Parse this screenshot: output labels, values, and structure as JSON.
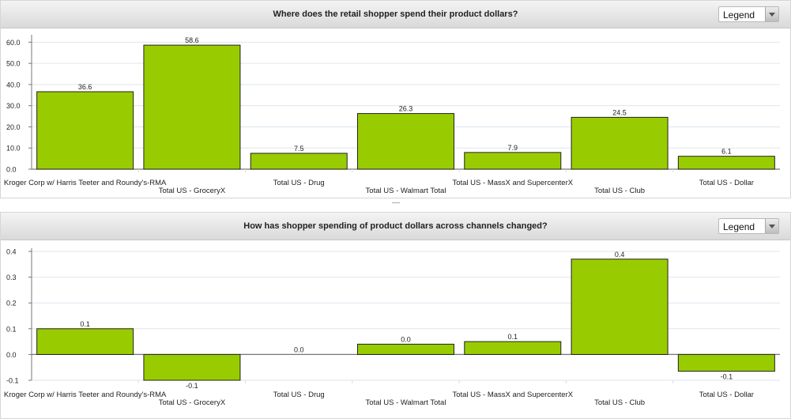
{
  "colors": {
    "bar": "#99cc00",
    "bar_stroke": "#222222",
    "grid": "#dde6ee",
    "axis": "#777777"
  },
  "chart1": {
    "legend_label": "Legend"
  },
  "chart2": {
    "legend_label": "Legend"
  },
  "chart_data": [
    {
      "type": "bar",
      "title": "Where does the retail shopper spend their product dollars?",
      "categories": [
        "Kroger Corp w/ Harris Teeter and Roundy's-RMA",
        "Total US - GroceryX",
        "Total US - Drug",
        "Total US - Walmart Total",
        "Total US - MassX and SupercenterX",
        "Total US - Club",
        "Total US - Dollar"
      ],
      "values": [
        36.6,
        58.6,
        7.5,
        26.3,
        7.9,
        24.5,
        6.1
      ],
      "value_labels": [
        "36.6",
        "58.6",
        "7.5",
        "26.3",
        "7.9",
        "24.5",
        "6.1"
      ],
      "yticks": [
        "0.0",
        "10.0",
        "20.0",
        "30.0",
        "40.0",
        "50.0",
        "60.0"
      ],
      "ylim": [
        0,
        62
      ],
      "grid": true
    },
    {
      "type": "bar",
      "title": "How has shopper spending of product dollars across channels changed?",
      "categories": [
        "Kroger Corp w/ Harris Teeter and Roundy's-RMA",
        "Total US - GroceryX",
        "Total US - Drug",
        "Total US - Walmart Total",
        "Total US - MassX and SupercenterX",
        "Total US - Club",
        "Total US - Dollar"
      ],
      "values": [
        0.1,
        -0.1,
        0.0,
        0.04,
        0.05,
        0.37,
        -0.065
      ],
      "value_labels": [
        "0.1",
        "-0.1",
        "0.0",
        "0.0",
        "0.1",
        "0.4",
        "-0.1"
      ],
      "yticks": [
        "-0.1",
        "0.0",
        "0.1",
        "0.2",
        "0.3",
        "0.4"
      ],
      "ylim": [
        -0.1,
        0.4
      ],
      "grid": true
    }
  ]
}
